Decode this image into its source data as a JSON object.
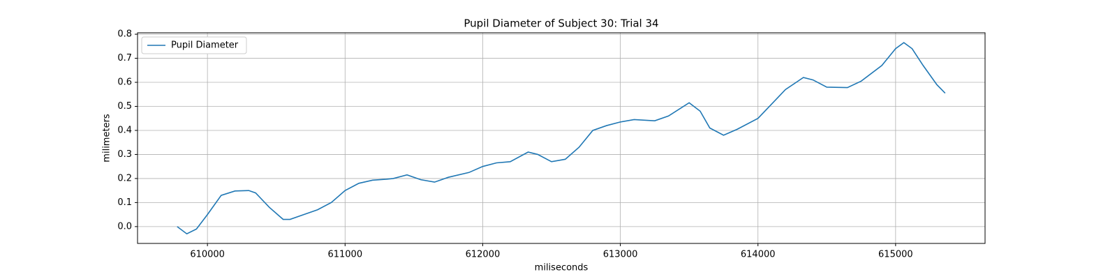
{
  "chart_data": {
    "type": "line",
    "title": "Pupil Diameter of Subject 30: Trial 34",
    "x_label": "miliseconds",
    "y_label": "milimeters",
    "x": [
      609780,
      609850,
      609920,
      610000,
      610100,
      610200,
      610300,
      610350,
      610450,
      610550,
      610600,
      610700,
      610800,
      610900,
      611000,
      611100,
      611200,
      611300,
      611350,
      611450,
      611550,
      611650,
      611750,
      611900,
      612000,
      612100,
      612200,
      612330,
      612400,
      612500,
      612600,
      612700,
      612800,
      612900,
      613000,
      613100,
      613250,
      613350,
      613500,
      613580,
      613650,
      613750,
      613850,
      614000,
      614100,
      614200,
      614330,
      614400,
      614500,
      614650,
      614750,
      614900,
      615000,
      615060,
      615120,
      615200,
      615300,
      615360
    ],
    "series": [
      {
        "name": "Pupil Diameter",
        "color": "#1f77b4",
        "values": [
          0.0,
          -0.03,
          -0.01,
          0.05,
          0.13,
          0.148,
          0.15,
          0.14,
          0.08,
          0.03,
          0.03,
          0.05,
          0.07,
          0.1,
          0.15,
          0.18,
          0.193,
          0.197,
          0.2,
          0.215,
          0.195,
          0.185,
          0.205,
          0.225,
          0.25,
          0.265,
          0.27,
          0.31,
          0.3,
          0.27,
          0.28,
          0.33,
          0.4,
          0.42,
          0.435,
          0.445,
          0.44,
          0.46,
          0.515,
          0.48,
          0.41,
          0.38,
          0.405,
          0.45,
          0.51,
          0.57,
          0.62,
          0.61,
          0.58,
          0.578,
          0.605,
          0.67,
          0.74,
          0.765,
          0.74,
          0.67,
          0.59,
          0.555
        ]
      }
    ],
    "xlim": [
      609492,
      615650
    ],
    "xticks": [
      610000,
      611000,
      612000,
      613000,
      614000,
      615000
    ],
    "ylim": [
      -0.07,
      0.806
    ],
    "yticks": [
      {
        "value": 0,
        "label": "0.0"
      },
      0.1,
      0.2,
      0.3,
      0.4,
      0.5,
      0.6,
      0.7,
      0.8
    ],
    "grid": true,
    "legend": "upper left"
  }
}
